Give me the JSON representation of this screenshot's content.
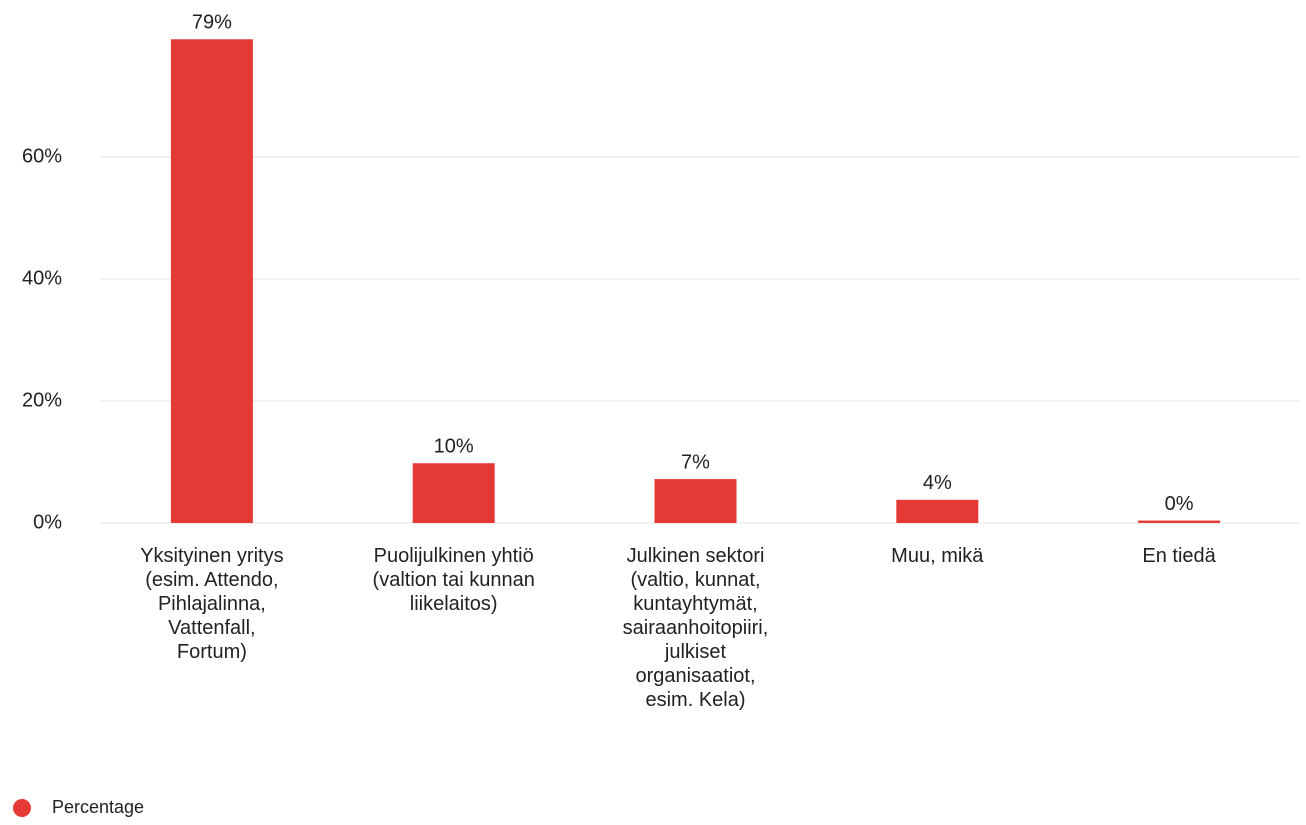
{
  "chart_data": {
    "type": "bar",
    "categories": [
      "Yksityinen yritys\n(esim. Attendo,\nPihlajalinna,\nVattenfall,\nFortum)",
      "Puolijulkinen yhtiö\n(valtion tai kunnan\nliikelaitos)",
      "Julkinen sektori\n(valtio, kunnat,\nkuntayhtymät,\nsairaanhoitopiiri,\njulkiset\norganisaatiot,\nesim. Kela)",
      "Muu, mikä",
      "En tiedä"
    ],
    "series": [
      {
        "name": "Percentage",
        "color": "#e53935",
        "values": [
          79.3,
          9.8,
          7.2,
          3.8,
          0.4
        ],
        "value_labels": [
          "79%",
          "10%",
          "7%",
          "4%",
          "0%"
        ]
      }
    ],
    "ylim": [
      0,
      80
    ],
    "yticks": [
      {
        "value": 0,
        "label": "0%"
      },
      {
        "value": 20,
        "label": "20%"
      },
      {
        "value": 40,
        "label": "40%"
      },
      {
        "value": 60,
        "label": "60%"
      }
    ],
    "grid": true,
    "legend": "bottom-left"
  }
}
